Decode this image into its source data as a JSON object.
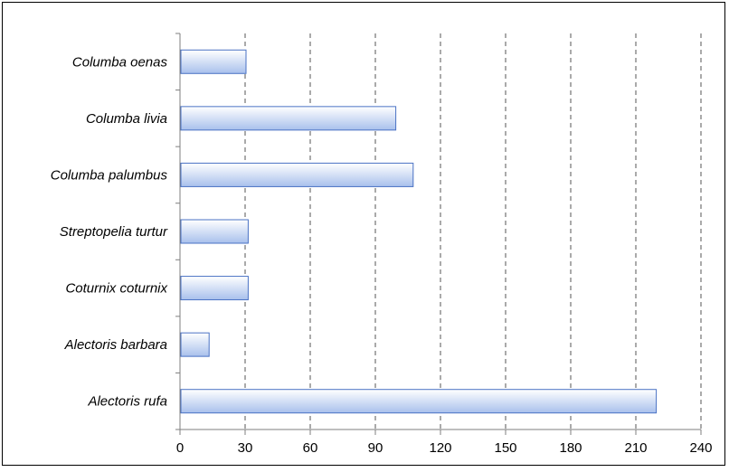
{
  "chart_data": {
    "type": "bar",
    "orientation": "horizontal",
    "title": "",
    "xlabel": "",
    "ylabel": "",
    "categories": [
      "Columba oenas",
      "Columba livia",
      "Columba palumbus",
      "Streptopelia turtur",
      "Coturnix coturnix",
      "Alectoris barbara",
      "Alectoris rufa"
    ],
    "values": [
      30,
      99,
      107,
      31,
      31,
      13,
      219
    ],
    "xlim": [
      0,
      240
    ],
    "xticks": [
      0,
      30,
      60,
      90,
      120,
      150,
      180,
      210,
      240
    ],
    "xtick_labels": [
      "0",
      "30",
      "60",
      "90",
      "120",
      "150",
      "180",
      "210",
      "240"
    ],
    "grid": "vertical-dashed",
    "legend": "none",
    "colors": {
      "bar_top": "#ffffff",
      "bar_bottom": "#a8c0ec",
      "bar_border": "#4a72c4",
      "grid": "#555555",
      "axis": "#7f7f7f"
    }
  }
}
